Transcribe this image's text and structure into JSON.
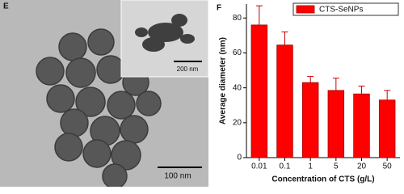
{
  "image_panel": {
    "label": "E",
    "scale_bar": "100 nm",
    "inset_scale_bar": "200 nm"
  },
  "chart_data": {
    "type": "bar",
    "panel_label": "F",
    "x_label": "Concentration of CTS (g/L)",
    "y_label": "Average diameter (nm)",
    "categories": [
      "0.01",
      "0.1",
      "1",
      "5",
      "20",
      "50"
    ],
    "series": [
      {
        "name": "CTS-SeNPs",
        "color": "#ff0000",
        "values": [
          76,
          64.5,
          43,
          38.5,
          36.5,
          33
        ],
        "errors": [
          11,
          7.5,
          3.5,
          7,
          4.5,
          5.5
        ]
      }
    ],
    "ylim": [
      0,
      88
    ],
    "yticks": [
      0,
      20,
      40,
      60,
      80
    ],
    "legend": "upper right"
  }
}
